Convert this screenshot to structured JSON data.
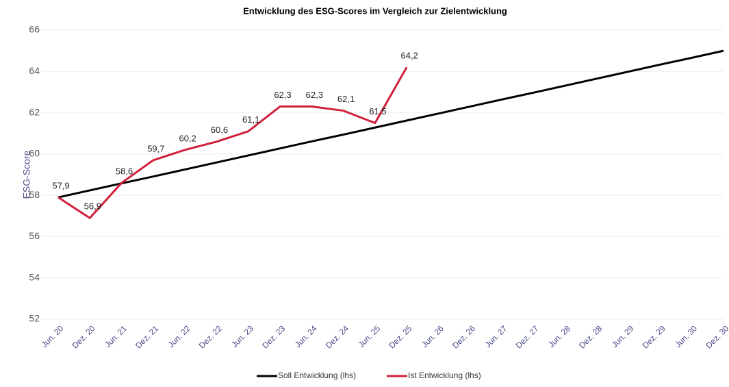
{
  "chart_data": {
    "type": "line",
    "title": "Entwicklung des ESG-Scores im Vergleich zur Zielentwicklung",
    "y_label": "ESG-Score",
    "categories": [
      "Jun. 20",
      "Dez. 20",
      "Jun. 21",
      "Dez. 21",
      "Jun. 22",
      "Dez. 22",
      "Jun. 23",
      "Dez. 23",
      "Jun. 24",
      "Dez. 24",
      "Jun. 25",
      "Dez. 25",
      "Jun. 26",
      "Dez. 26",
      "Jun. 27",
      "Dez. 27",
      "Jun. 28",
      "Dez. 28",
      "Jun. 29",
      "Dez. 29",
      "Jun. 30",
      "Dez. 30"
    ],
    "series": [
      {
        "name": "Soll Entwicklung (lhs)",
        "color": "#000000",
        "values": [
          57.9,
          58.24,
          58.58,
          58.91,
          59.25,
          59.59,
          59.93,
          60.27,
          60.61,
          60.94,
          61.28,
          61.62,
          61.96,
          62.3,
          62.64,
          62.97,
          63.31,
          63.65,
          63.99,
          64.33,
          64.66,
          65.0
        ]
      },
      {
        "name": "Ist Entwicklung (lhs)",
        "color": "#d0203c",
        "values": [
          57.9,
          56.9,
          58.6,
          59.7,
          60.2,
          60.6,
          61.1,
          62.3,
          62.3,
          62.1,
          61.5,
          64.2,
          null,
          null,
          null,
          null,
          null,
          null,
          null,
          null,
          null,
          null
        ],
        "value_labels": [
          "57,9",
          "56,9",
          "58,6",
          "59,7",
          "60,2",
          "60,6",
          "61,1",
          "62,3",
          "62,3",
          "62,1",
          "61,5",
          "64,2",
          null,
          null,
          null,
          null,
          null,
          null,
          null,
          null,
          null,
          null
        ]
      }
    ],
    "ylim": [
      52,
      66
    ],
    "yticks": [
      52,
      54,
      56,
      58,
      60,
      62,
      64,
      66
    ],
    "grid": true,
    "legend": "bottom"
  }
}
